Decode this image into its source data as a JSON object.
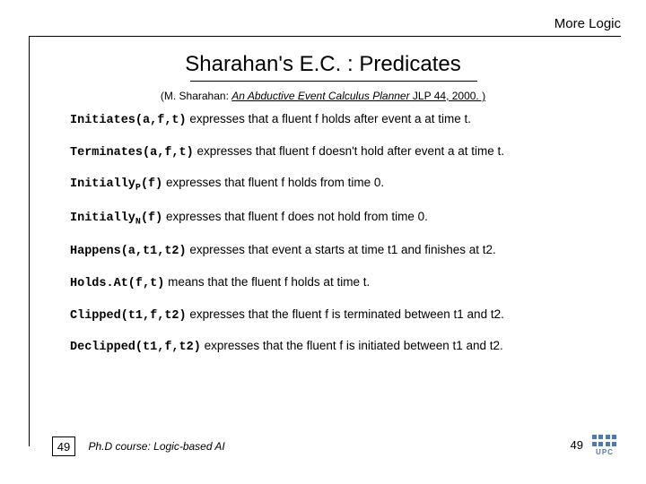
{
  "header": {
    "section": "More Logic"
  },
  "title": "Sharahan's E.C. : Predicates",
  "citation": {
    "prefix": "(M. Sharahan: ",
    "italic": "An Abductive Event Calculus Planner",
    "suffix": " JLP 44, 2000. )"
  },
  "predicates": [
    {
      "name": "Initiates(a,f,t)",
      "desc": " expresses that a fluent f holds  after event a at time t."
    },
    {
      "name": "Terminates(a,f,t)",
      "desc": " expresses that fluent f doesn't hold after event a at time t."
    },
    {
      "name_pre": "Initially",
      "sub": "P",
      "name_post": "(f)",
      "desc": " expresses that fluent f holds from time 0."
    },
    {
      "name_pre": "Initially",
      "sub": "N",
      "name_post": "(f)",
      "desc": " expresses that fluent f does not hold from time 0."
    },
    {
      "name": "Happens(a,t1,t2)",
      "desc": " expresses that event a starts at time t1 and finishes at t2."
    },
    {
      "name": "Holds.At(f,t)",
      "desc": " means that the fluent f holds at time t."
    },
    {
      "name": "Clipped(t1,f,t2)",
      "desc": " expresses that the fluent f is terminated between t1 and t2."
    },
    {
      "name": "Declipped(t1,f,t2)",
      "desc": " expresses that the fluent f is initiated between t1 and t2."
    }
  ],
  "footer": {
    "page_box": "49",
    "course": "Ph.D course: Logic-based AI",
    "page_right": "49",
    "logo_text": "UPC"
  },
  "colors": {
    "logo": "#4a7bb5",
    "text": "#000000",
    "bg": "#ffffff"
  }
}
